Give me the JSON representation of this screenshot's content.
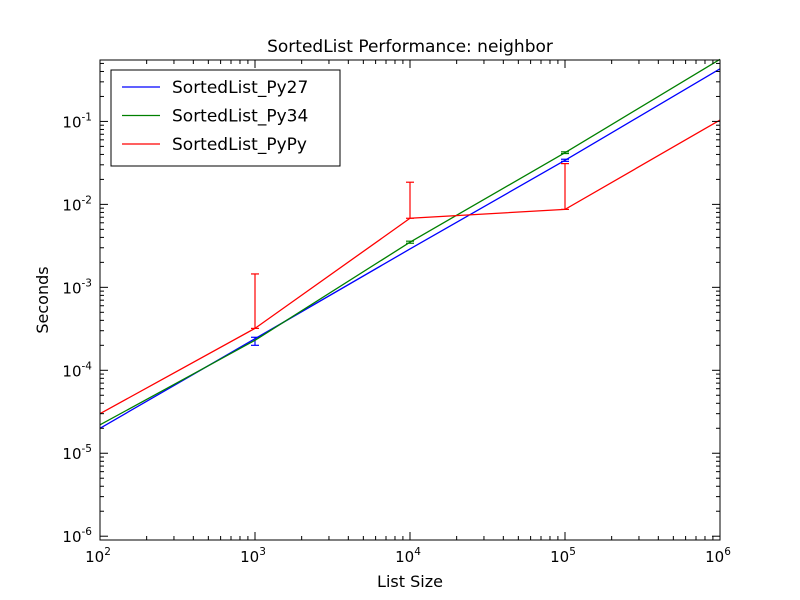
{
  "chart_data": {
    "type": "line",
    "title": "SortedList Performance: neighbor",
    "xlabel": "List Size",
    "ylabel": "Seconds",
    "xscale": "log",
    "yscale": "log",
    "xlim": [
      100,
      1000000
    ],
    "ylim": [
      9e-07,
      0.55
    ],
    "grid": false,
    "legend_position": "upper-left",
    "x_ticks": [
      {
        "value": 100,
        "base": "10",
        "exp": "2"
      },
      {
        "value": 1000,
        "base": "10",
        "exp": "3"
      },
      {
        "value": 10000,
        "base": "10",
        "exp": "4"
      },
      {
        "value": 100000,
        "base": "10",
        "exp": "5"
      },
      {
        "value": 1000000,
        "base": "10",
        "exp": "6"
      }
    ],
    "y_ticks": [
      {
        "value": 1e-06,
        "base": "10",
        "exp": "-6"
      },
      {
        "value": 1e-05,
        "base": "10",
        "exp": "-5"
      },
      {
        "value": 0.0001,
        "base": "10",
        "exp": "-4"
      },
      {
        "value": 0.001,
        "base": "10",
        "exp": "-3"
      },
      {
        "value": 0.01,
        "base": "10",
        "exp": "-2"
      },
      {
        "value": 0.1,
        "base": "10",
        "exp": "-1"
      }
    ],
    "x": [
      100,
      1000,
      10000,
      100000,
      1000000
    ],
    "series": [
      {
        "name": "SortedList_Py27",
        "color": "#0000ff",
        "values": [
          2e-05,
          0.00024,
          0.0029,
          0.034,
          0.43
        ],
        "err_low": [
          2e-05,
          0.0002,
          0.0029,
          0.033,
          0.43
        ],
        "err_high": [
          2e-05,
          0.00025,
          0.0029,
          0.035,
          0.43
        ]
      },
      {
        "name": "SortedList_Py34",
        "color": "#008000",
        "values": [
          2.2e-05,
          0.00023,
          0.0035,
          0.042,
          0.56
        ],
        "err_low": [
          2.2e-05,
          0.00023,
          0.0034,
          0.041,
          0.56
        ],
        "err_high": [
          2.2e-05,
          0.00023,
          0.0036,
          0.043,
          0.56
        ]
      },
      {
        "name": "SortedList_PyPy",
        "color": "#ff0000",
        "values": [
          3e-05,
          0.00032,
          0.0068,
          0.0087,
          0.104
        ],
        "err_low": [
          3e-05,
          0.00032,
          0.0068,
          0.0087,
          0.104
        ],
        "err_high": [
          3e-05,
          0.00145,
          0.0185,
          0.031,
          0.104
        ]
      }
    ]
  }
}
